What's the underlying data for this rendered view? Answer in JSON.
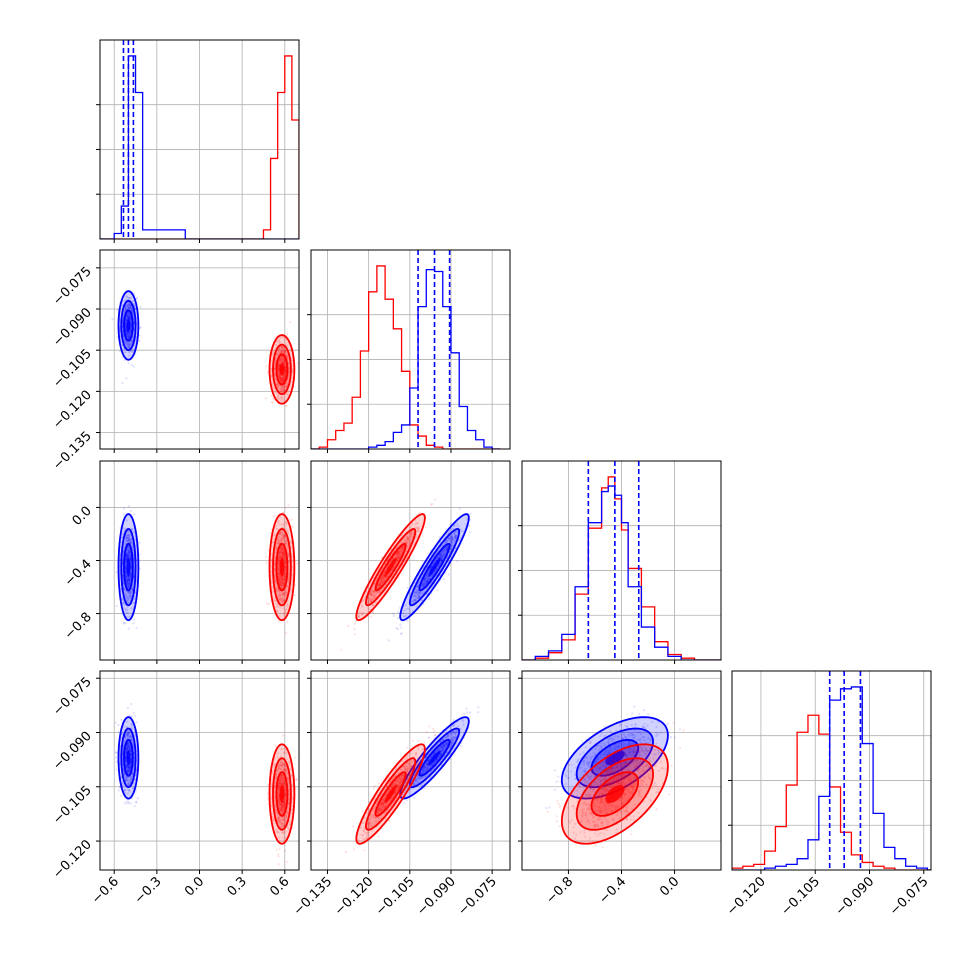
{
  "chart_data": {
    "type": "corner",
    "grid": true,
    "series": [
      {
        "color": "#0000ff"
      },
      {
        "color": "#ff0000"
      }
    ],
    "parameters": [
      {
        "range": [
          -0.7,
          0.7
        ],
        "ticks": [
          -0.6,
          -0.3,
          0.0,
          0.3,
          0.6
        ],
        "tick_labels": [
          "−0.6",
          "−0.3",
          "0.0",
          "0.3",
          "0.6"
        ]
      },
      {
        "range": [
          -0.141,
          -0.0685
        ],
        "ticks": [
          -0.135,
          -0.12,
          -0.105,
          -0.09,
          -0.075
        ],
        "tick_labels": [
          "−0.135",
          "−0.120",
          "−0.105",
          "−0.090",
          "−0.075"
        ]
      },
      {
        "range": [
          -1.15,
          0.35
        ],
        "ticks": [
          -0.8,
          -0.4,
          0.0
        ],
        "tick_labels": [
          "−0.8",
          "−0.4",
          "0.0"
        ]
      },
      {
        "range": [
          -0.128,
          -0.073
        ],
        "ticks": [
          -0.12,
          -0.105,
          -0.09,
          -0.075
        ],
        "tick_labels": [
          "−0.120",
          "−0.105",
          "−0.090",
          "−0.075"
        ]
      }
    ],
    "quantile_lines": [
      [
        -0.535,
        -0.5,
        -0.465
      ],
      [
        -0.102,
        -0.096,
        -0.0905
      ],
      [
        -0.65,
        -0.45,
        -0.27
      ],
      [
        -0.101,
        -0.097,
        -0.0925
      ]
    ],
    "marginals": [
      {
        "bins": [
          -0.7,
          -0.6,
          -0.55,
          -0.5,
          -0.45,
          -0.4,
          -0.1,
          0.45,
          0.5,
          0.55,
          0.6,
          0.65,
          0.7
        ],
        "blue": [
          0.0,
          0.03,
          0.18,
          1.0,
          0.8,
          0.05,
          0.0,
          0.0,
          0.0,
          0.0,
          0.0,
          0.0
        ],
        "red": [
          0.0,
          0.0,
          0.0,
          0.0,
          0.0,
          0.0,
          0.0,
          0.05,
          0.44,
          0.8,
          1.0,
          0.65
        ]
      },
      {
        "bins": [
          -0.141,
          -0.138,
          -0.135,
          -0.132,
          -0.129,
          -0.126,
          -0.123,
          -0.12,
          -0.117,
          -0.114,
          -0.111,
          -0.108,
          -0.105,
          -0.102,
          -0.099,
          -0.096,
          -0.093,
          -0.09,
          -0.087,
          -0.084,
          -0.081,
          -0.078,
          -0.075,
          -0.072
        ],
        "blue": [
          0.0,
          0.0,
          0.0,
          0.0,
          0.0,
          0.0,
          0.0,
          0.01,
          0.02,
          0.04,
          0.09,
          0.13,
          0.33,
          0.77,
          0.97,
          0.96,
          0.77,
          0.52,
          0.23,
          0.1,
          0.05,
          0.01,
          0.0
        ],
        "red": [
          0.0,
          0.01,
          0.05,
          0.1,
          0.14,
          0.28,
          0.53,
          0.85,
          0.99,
          0.81,
          0.65,
          0.42,
          0.13,
          0.07,
          0.02,
          0.01,
          0.0,
          0.0,
          0.0,
          0.0,
          0.0,
          0.0,
          0.0
        ]
      },
      {
        "bins": [
          -1.15,
          -1.05,
          -0.95,
          -0.85,
          -0.75,
          -0.65,
          -0.55,
          -0.5,
          -0.45,
          -0.4,
          -0.35,
          -0.25,
          -0.15,
          -0.05,
          0.05,
          0.15,
          0.25,
          0.35
        ],
        "blue": [
          0.0,
          0.02,
          0.05,
          0.14,
          0.4,
          0.75,
          0.92,
          0.95,
          0.9,
          0.75,
          0.4,
          0.18,
          0.07,
          0.02,
          0.0,
          0.0,
          0.0
        ],
        "red": [
          0.0,
          0.01,
          0.04,
          0.11,
          0.36,
          0.72,
          0.94,
          1.0,
          0.88,
          0.71,
          0.5,
          0.29,
          0.1,
          0.03,
          0.01,
          0.0,
          0.0
        ]
      },
      {
        "bins": [
          -0.128,
          -0.125,
          -0.122,
          -0.119,
          -0.116,
          -0.113,
          -0.11,
          -0.107,
          -0.104,
          -0.101,
          -0.098,
          -0.095,
          -0.092,
          -0.089,
          -0.086,
          -0.083,
          -0.08,
          -0.077,
          -0.074,
          -0.071
        ],
        "blue": [
          0.0,
          0.0,
          0.0,
          0.01,
          0.02,
          0.03,
          0.06,
          0.16,
          0.39,
          0.9,
          0.96,
          0.97,
          0.67,
          0.3,
          0.12,
          0.06,
          0.02,
          0.01,
          0.0
        ],
        "red": [
          0.01,
          0.02,
          0.03,
          0.1,
          0.23,
          0.45,
          0.73,
          0.82,
          0.72,
          0.44,
          0.2,
          0.08,
          0.04,
          0.02,
          0.01,
          0.0,
          0.0,
          0.0,
          0.0
        ]
      }
    ],
    "clouds": [
      {
        "pair": [
          0,
          1
        ],
        "blue": {
          "mean": [
            -0.5,
            -0.096
          ],
          "sd": [
            0.028,
            0.005
          ],
          "rho": 0.0
        },
        "red": {
          "mean": [
            0.58,
            -0.112
          ],
          "sd": [
            0.035,
            0.005
          ],
          "rho": 0.0
        }
      },
      {
        "pair": [
          0,
          2
        ],
        "blue": {
          "mean": [
            -0.5,
            -0.45
          ],
          "sd": [
            0.028,
            0.16
          ],
          "rho": 0.0
        },
        "red": {
          "mean": [
            0.58,
            -0.45
          ],
          "sd": [
            0.035,
            0.16
          ],
          "rho": 0.0
        }
      },
      {
        "pair": [
          1,
          2
        ],
        "blue": {
          "mean": [
            -0.096,
            -0.45
          ],
          "sd": [
            0.005,
            0.16
          ],
          "rho": 0.93
        },
        "red": {
          "mean": [
            -0.112,
            -0.45
          ],
          "sd": [
            0.005,
            0.16
          ],
          "rho": 0.93
        }
      },
      {
        "pair": [
          0,
          3
        ],
        "blue": {
          "mean": [
            -0.5,
            -0.097
          ],
          "sd": [
            0.028,
            0.0045
          ],
          "rho": 0.0
        },
        "red": {
          "mean": [
            0.58,
            -0.107
          ],
          "sd": [
            0.035,
            0.0055
          ],
          "rho": 0.0
        }
      },
      {
        "pair": [
          1,
          3
        ],
        "blue": {
          "mean": [
            -0.096,
            -0.097
          ],
          "sd": [
            0.005,
            0.0045
          ],
          "rho": 0.9
        },
        "red": {
          "mean": [
            -0.112,
            -0.107
          ],
          "sd": [
            0.005,
            0.0055
          ],
          "rho": 0.9
        }
      },
      {
        "pair": [
          2,
          3
        ],
        "blue": {
          "mean": [
            -0.45,
            -0.097
          ],
          "sd": [
            0.16,
            0.0045
          ],
          "rho": 0.55
        },
        "red": {
          "mean": [
            -0.45,
            -0.107
          ],
          "sd": [
            0.16,
            0.0055
          ],
          "rho": 0.55
        }
      }
    ]
  }
}
